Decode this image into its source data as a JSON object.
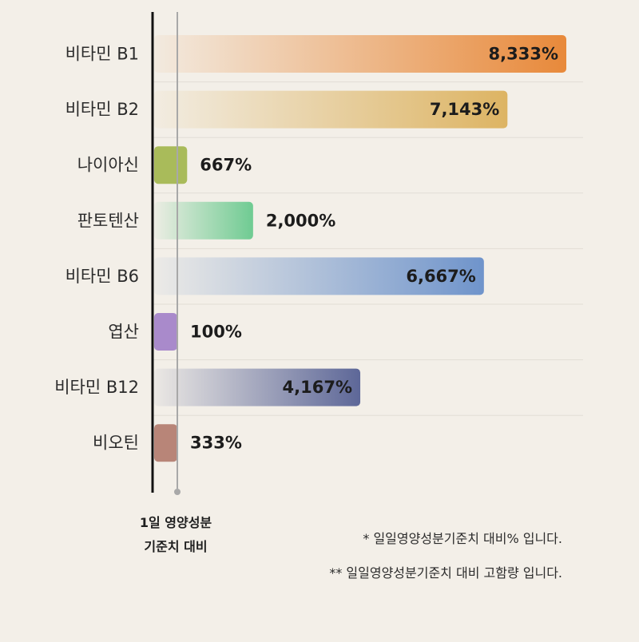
{
  "chart_data": {
    "type": "bar",
    "orientation": "horizontal",
    "categories": [
      "비타민 B1",
      "비타민 B2",
      "나이아신",
      "판토텐산",
      "비타민 B6",
      "엽산",
      "비타민 B12",
      "비오틴"
    ],
    "values": [
      8333,
      7143,
      667,
      2000,
      6667,
      100,
      4167,
      333
    ],
    "value_labels": [
      "8,333%",
      "7,143%",
      "667%",
      "2,000%",
      "6,667%",
      "100%",
      "4,167%",
      "333%"
    ],
    "unit": "%",
    "colors": [
      "#e8893a",
      "#ddb463",
      "#a9bb5a",
      "#6fcb92",
      "#6f94cb",
      "#a98acb",
      "#5d6798",
      "#b88578"
    ],
    "reference_line": {
      "value": 100
    },
    "grid": true
  },
  "reference_label": {
    "line1": "1일 영양성분",
    "line2": "기준치 대비"
  },
  "notes": [
    "* 일일영양성분기준치 대비% 입니다.",
    "** 일일영양성분기준치 대비 고함량 입니다."
  ]
}
